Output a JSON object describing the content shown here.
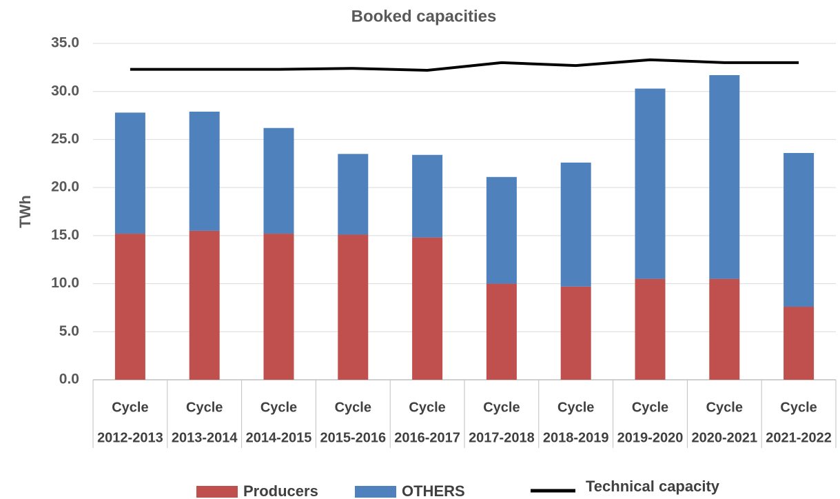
{
  "chart_data": {
    "type": "bar",
    "stacked": true,
    "title": "Booked capacities",
    "y_label": "TWh",
    "categories": [
      [
        "Cycle",
        "2012-2013"
      ],
      [
        "Cycle",
        "2013-2014"
      ],
      [
        "Cycle",
        "2014-2015"
      ],
      [
        "Cycle",
        "2015-2016"
      ],
      [
        "Cycle",
        "2016-2017"
      ],
      [
        "Cycle",
        "2017-2018"
      ],
      [
        "Cycle",
        "2018-2019"
      ],
      [
        "Cycle",
        "2019-2020"
      ],
      [
        "Cycle",
        "2020-2021"
      ],
      [
        "Cycle",
        "2021-2022"
      ]
    ],
    "series": [
      {
        "name": "Producers",
        "color": "#c0504d",
        "values": [
          15.2,
          15.5,
          15.2,
          15.1,
          14.8,
          10.0,
          9.7,
          10.5,
          10.5,
          7.6
        ]
      },
      {
        "name": "OTHERS",
        "color": "#4f81bd",
        "values": [
          12.6,
          12.4,
          11.0,
          8.4,
          8.6,
          11.1,
          12.9,
          19.8,
          21.2,
          16.0
        ]
      },
      {
        "name": "Technical capacity",
        "color": "#000000",
        "type": "line",
        "values": [
          32.3,
          32.3,
          32.3,
          32.4,
          32.2,
          33.0,
          32.7,
          33.3,
          33.0,
          33.0
        ]
      }
    ],
    "ylim": [
      0,
      35
    ],
    "yticks": [
      {
        "value": 0,
        "label": "0.0"
      },
      {
        "value": 5,
        "label": "5.0"
      },
      {
        "value": 10,
        "label": "10.0"
      },
      {
        "value": 15,
        "label": "15.0"
      },
      {
        "value": 20,
        "label": "20.0"
      },
      {
        "value": 25,
        "label": "25.0"
      },
      {
        "value": 30,
        "label": "30.0"
      },
      {
        "value": 35,
        "label": "35.0"
      }
    ],
    "grid": true,
    "legend": "bottom"
  }
}
